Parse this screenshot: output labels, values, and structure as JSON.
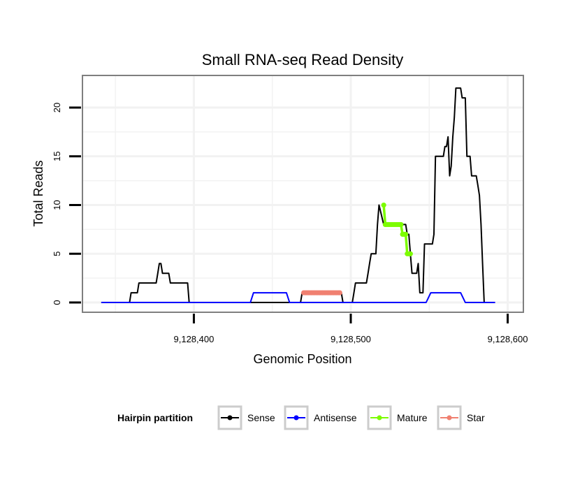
{
  "chart_data": {
    "type": "line",
    "title": "Small RNA-seq Read Density",
    "xlabel": "Genomic Position",
    "ylabel": "Total Reads",
    "xlim": [
      9128329,
      9128610
    ],
    "ylim": [
      -1.0,
      23.3
    ],
    "xticks": [
      9128400,
      9128500,
      9128600
    ],
    "xtick_labels": [
      "9,128,400",
      "9,128,500",
      "9,128,600"
    ],
    "yticks": [
      0,
      5,
      10,
      15,
      20
    ],
    "ytick_labels": [
      "0",
      "5",
      "10",
      "15",
      "20"
    ],
    "grid": true,
    "legend": {
      "title": "Hairpin partition",
      "position": "bottom",
      "entries": [
        "Sense",
        "Antisense",
        "Mature",
        "Star"
      ]
    },
    "series": [
      {
        "name": "Sense",
        "color": "#000000",
        "x": [
          9128341,
          9128359,
          9128360,
          9128362,
          9128363,
          9128364,
          9128365,
          9128376,
          9128377,
          9128378,
          9128379,
          9128380,
          9128381,
          9128384,
          9128385,
          9128386,
          9128387,
          9128388,
          9128389,
          9128390,
          9128396,
          9128397,
          9128398,
          9128468,
          9128469,
          9128470,
          9128494,
          9128495,
          9128496,
          9128501,
          9128502,
          9128503,
          9128504,
          9128505,
          9128506,
          9128507,
          9128510,
          9128511,
          9128512,
          9128513,
          9128514,
          9128515,
          9128516,
          9128517,
          9128518,
          9128521,
          9128522,
          9128524,
          9128525,
          9128533,
          9128534,
          9128535,
          9128536,
          9128537,
          9128538,
          9128539,
          9128540,
          9128541,
          9128542,
          9128543,
          9128544,
          9128545,
          9128546,
          9128547,
          9128548,
          9128549,
          9128550,
          9128551,
          9128552,
          9128553,
          9128554,
          9128555,
          9128556,
          9128557,
          9128558,
          9128559,
          9128560,
          9128561,
          9128562,
          9128563,
          9128564,
          9128565,
          9128566,
          9128567,
          9128568,
          9128569,
          9128570,
          9128571,
          9128572,
          9128573,
          9128574,
          9128575,
          9128576,
          9128577,
          9128578,
          9128579,
          9128580,
          9128581,
          9128582,
          9128583,
          9128584,
          9128585,
          9128586,
          9128587,
          9128588
        ],
        "y": [
          0,
          0,
          1,
          1,
          1,
          1,
          2,
          2,
          3,
          4,
          4,
          3,
          3,
          3,
          2,
          2,
          2,
          2,
          2,
          2,
          2,
          0,
          0,
          0,
          1,
          1,
          1,
          0,
          0,
          0,
          1,
          2,
          2,
          2,
          2,
          2,
          2,
          3,
          4,
          5,
          5,
          5,
          5,
          8,
          10,
          8,
          8,
          8,
          8,
          8,
          8,
          8,
          7,
          7,
          5,
          3,
          3,
          3,
          3,
          4,
          1,
          1,
          1,
          6,
          6,
          6,
          6,
          6,
          6,
          7,
          15,
          15,
          15,
          15,
          15,
          15,
          16,
          16,
          17,
          13,
          14,
          17,
          19,
          22,
          22,
          22,
          22,
          21,
          21,
          21,
          15,
          15,
          15,
          13,
          13,
          13,
          13,
          12,
          11,
          8,
          4,
          0,
          0,
          0,
          0
        ]
      },
      {
        "name": "Antisense",
        "color": "#0000ff",
        "x": [
          9128341,
          9128436,
          9128438,
          9128459,
          9128461,
          9128476,
          9128477,
          9128479,
          9128480,
          9128548,
          9128551,
          9128570,
          9128573,
          9128592
        ],
        "y": [
          0,
          0,
          1,
          1,
          0,
          0,
          0,
          0,
          0,
          0,
          1,
          1,
          0,
          0
        ]
      },
      {
        "name": "Mature",
        "color": "#7cfc00",
        "x": [
          9128521,
          9128522,
          9128523,
          9128524,
          9128525,
          9128526,
          9128527,
          9128528,
          9128529,
          9128530,
          9128531,
          9128532,
          9128533,
          9128534,
          9128535,
          9128536,
          9128537,
          9128538
        ],
        "y": [
          10,
          8,
          8,
          8,
          8,
          8,
          8,
          8,
          8,
          8,
          8,
          8,
          7,
          7,
          7,
          5,
          5,
          5
        ]
      },
      {
        "name": "Star",
        "color": "#f08070",
        "x": [
          9128470,
          9128471,
          9128472,
          9128473,
          9128474,
          9128475,
          9128476,
          9128477,
          9128478,
          9128479,
          9128480,
          9128481,
          9128482,
          9128483,
          9128484,
          9128485,
          9128486,
          9128487,
          9128488,
          9128489,
          9128490,
          9128491,
          9128492,
          9128493
        ],
        "y": [
          1,
          1,
          1,
          1,
          1,
          1,
          1,
          1,
          1,
          1,
          1,
          1,
          1,
          1,
          1,
          1,
          1,
          1,
          1,
          1,
          1,
          1,
          1,
          1
        ]
      }
    ]
  }
}
